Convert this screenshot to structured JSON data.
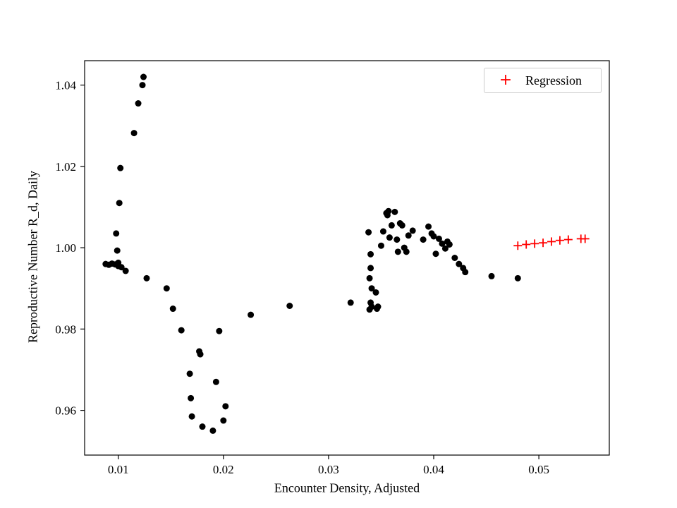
{
  "figure": {
    "background": "#ffffff"
  },
  "chart_data": {
    "type": "scatter",
    "title": "",
    "xlabel": "Encounter Density, Adjusted",
    "ylabel": "Reproductive Number R_d, Daily",
    "xlim": [
      0.0068,
      0.0567
    ],
    "ylim": [
      0.949,
      1.046
    ],
    "xticks": [
      0.01,
      0.02,
      0.03,
      0.04,
      0.05
    ],
    "xtick_labels": [
      "0.01",
      "0.02",
      "0.03",
      "0.04",
      "0.05"
    ],
    "yticks": [
      0.96,
      0.98,
      1.0,
      1.02,
      1.04
    ],
    "ytick_labels": [
      "0.96",
      "0.98",
      "1.00",
      "1.02",
      "1.04"
    ],
    "grid": false,
    "legend": {
      "position": "upper right",
      "entries": [
        {
          "label": "Regression",
          "marker": "plus",
          "color": "#ff0000"
        }
      ]
    },
    "series": [
      {
        "name": "observations",
        "marker": "circle",
        "color": "#000000",
        "size": 4.5,
        "points": [
          [
            0.0088,
            0.996
          ],
          [
            0.0091,
            0.9958
          ],
          [
            0.0094,
            0.9961
          ],
          [
            0.0097,
            0.9959
          ],
          [
            0.01,
            0.9963
          ],
          [
            0.01,
            0.9955
          ],
          [
            0.0103,
            0.9952
          ],
          [
            0.0107,
            0.9943
          ],
          [
            0.0098,
            1.0035
          ],
          [
            0.0099,
            0.9993
          ],
          [
            0.0101,
            1.011
          ],
          [
            0.0102,
            1.0196
          ],
          [
            0.0115,
            1.0282
          ],
          [
            0.0119,
            1.0355
          ],
          [
            0.0123,
            1.04
          ],
          [
            0.0124,
            1.042
          ],
          [
            0.0127,
            0.9925
          ],
          [
            0.0146,
            0.99
          ],
          [
            0.0152,
            0.985
          ],
          [
            0.016,
            0.9797
          ],
          [
            0.0168,
            0.969
          ],
          [
            0.0169,
            0.963
          ],
          [
            0.017,
            0.9585
          ],
          [
            0.0177,
            0.9745
          ],
          [
            0.0178,
            0.9738
          ],
          [
            0.018,
            0.956
          ],
          [
            0.019,
            0.955
          ],
          [
            0.0193,
            0.967
          ],
          [
            0.0196,
            0.9795
          ],
          [
            0.02,
            0.9575
          ],
          [
            0.0202,
            0.961
          ],
          [
            0.0226,
            0.9835
          ],
          [
            0.0263,
            0.9857
          ],
          [
            0.0321,
            0.9865
          ],
          [
            0.0338,
            1.0038
          ],
          [
            0.034,
            0.9984
          ],
          [
            0.034,
            0.995
          ],
          [
            0.0339,
            0.9925
          ],
          [
            0.0341,
            0.99
          ],
          [
            0.034,
            0.9865
          ],
          [
            0.0341,
            0.9855
          ],
          [
            0.0339,
            0.9848
          ],
          [
            0.0345,
            0.989
          ],
          [
            0.0346,
            0.985
          ],
          [
            0.0347,
            0.9855
          ],
          [
            0.035,
            1.0005
          ],
          [
            0.0352,
            1.004
          ],
          [
            0.0355,
            1.0085
          ],
          [
            0.0356,
            1.008
          ],
          [
            0.0357,
            1.009
          ],
          [
            0.0358,
            1.0025
          ],
          [
            0.036,
            1.0055
          ],
          [
            0.0363,
            1.0088
          ],
          [
            0.0365,
            1.002
          ],
          [
            0.0366,
            0.999
          ],
          [
            0.0368,
            1.006
          ],
          [
            0.037,
            1.0055
          ],
          [
            0.0372,
            1.0
          ],
          [
            0.0374,
            0.999
          ],
          [
            0.0376,
            1.003
          ],
          [
            0.038,
            1.0042
          ],
          [
            0.039,
            1.002
          ],
          [
            0.0395,
            1.0052
          ],
          [
            0.0398,
            1.0035
          ],
          [
            0.04,
            1.0028
          ],
          [
            0.0402,
            0.9985
          ],
          [
            0.0405,
            1.0022
          ],
          [
            0.0408,
            1.001
          ],
          [
            0.0411,
            0.9998
          ],
          [
            0.0413,
            1.0015
          ],
          [
            0.0415,
            1.0008
          ],
          [
            0.042,
            0.9975
          ],
          [
            0.0424,
            0.996
          ],
          [
            0.0428,
            0.995
          ],
          [
            0.043,
            0.994
          ],
          [
            0.0455,
            0.993
          ],
          [
            0.048,
            0.9925
          ]
        ]
      },
      {
        "name": "Regression",
        "marker": "plus",
        "color": "#ff0000",
        "size": 6,
        "points": [
          [
            0.048,
            1.0005
          ],
          [
            0.0488,
            1.0008
          ],
          [
            0.0496,
            1.001
          ],
          [
            0.0504,
            1.0012
          ],
          [
            0.0512,
            1.0015
          ],
          [
            0.052,
            1.0018
          ],
          [
            0.0528,
            1.002
          ],
          [
            0.054,
            1.0022
          ],
          [
            0.0544,
            1.0022
          ]
        ]
      }
    ]
  }
}
